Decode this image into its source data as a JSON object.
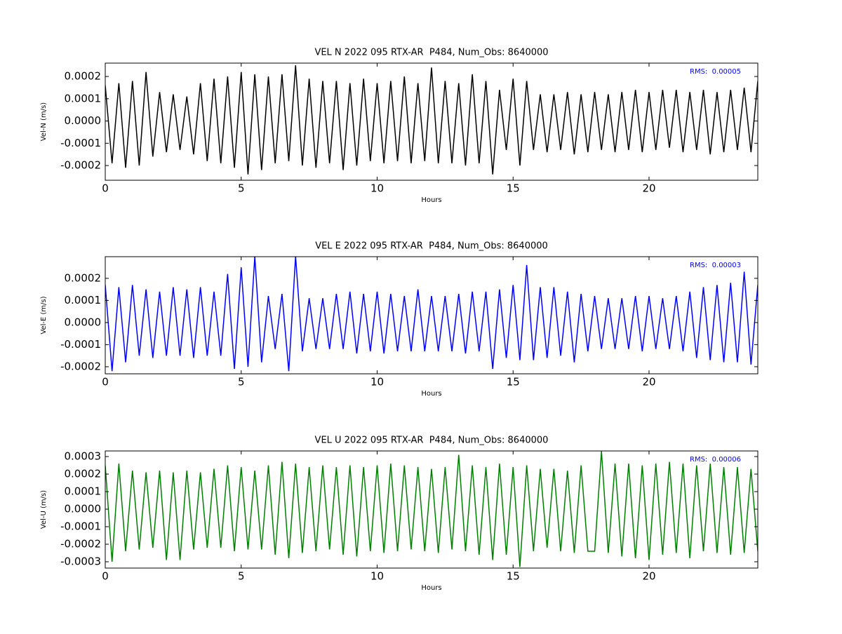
{
  "chart_data": [
    {
      "type": "line",
      "title": "VEL N 2022 095 RTX-AR  P484, Num_Obs: 8640000",
      "xlabel": "Hours",
      "ylabel": "Vel-N (m/s)",
      "annotation": "RMS:  0.00005",
      "annotation_color": "#0000ff",
      "color": "#000000",
      "xlim": [
        0,
        24
      ],
      "xticks": [
        0,
        5,
        10,
        15,
        20
      ],
      "ylim": [
        -0.000266,
        0.00026
      ],
      "yticks": [
        -0.0002,
        -0.0001,
        {
          "value": 0,
          "label": "0.0000"
        },
        0.0001,
        0.0002
      ],
      "x": [
        0,
        0.25,
        0.5,
        0.75,
        1,
        1.25,
        1.5,
        1.75,
        2,
        2.25,
        2.5,
        2.75,
        3,
        3.25,
        3.5,
        3.75,
        4,
        4.25,
        4.5,
        4.75,
        5,
        5.25,
        5.5,
        5.75,
        6,
        6.25,
        6.5,
        6.75,
        7,
        7.25,
        7.5,
        7.75,
        8,
        8.25,
        8.5,
        8.75,
        9,
        9.25,
        9.5,
        9.75,
        10,
        10.25,
        10.5,
        10.75,
        11,
        11.25,
        11.5,
        11.75,
        12,
        12.25,
        12.5,
        12.75,
        13,
        13.25,
        13.5,
        13.75,
        14,
        14.25,
        14.5,
        14.75,
        15,
        15.25,
        15.5,
        15.75,
        16,
        16.25,
        16.5,
        16.75,
        17,
        17.25,
        17.5,
        17.75,
        18,
        18.25,
        18.5,
        18.75,
        19,
        19.25,
        19.5,
        19.75,
        20,
        20.25,
        20.5,
        20.75,
        21,
        21.25,
        21.5,
        21.75,
        22,
        22.25,
        22.5,
        22.75,
        23,
        23.25,
        23.5,
        23.75,
        24
      ],
      "values": [
        0.00016,
        -0.00019,
        0.00017,
        -0.00021,
        0.00018,
        -0.0002,
        0.00022,
        -0.00016,
        0.00013,
        -0.00014,
        0.00012,
        -0.00013,
        0.00011,
        -0.00015,
        0.00017,
        -0.00018,
        0.00019,
        -0.00019,
        0.0002,
        -0.00021,
        0.00022,
        -0.00024,
        0.00021,
        -0.00022,
        0.0002,
        -0.00019,
        0.00021,
        -0.00018,
        0.00025,
        -0.0002,
        0.00019,
        -0.00021,
        0.00018,
        -0.00019,
        0.00018,
        -0.00022,
        0.00017,
        -0.0002,
        0.00019,
        -0.00018,
        0.00017,
        -0.00019,
        0.00018,
        -0.00018,
        0.0002,
        -0.00019,
        0.00017,
        -0.00018,
        0.00024,
        -0.00019,
        0.00018,
        -0.00019,
        0.00017,
        -0.0002,
        0.00021,
        -0.00019,
        0.00018,
        -0.00024,
        0.00014,
        -0.00013,
        0.00019,
        -0.0002,
        0.00018,
        -0.00013,
        0.00012,
        -0.00014,
        0.00012,
        -0.00013,
        0.00013,
        -0.00015,
        0.00012,
        -0.00014,
        0.00013,
        -0.00013,
        0.00012,
        -0.00014,
        0.00013,
        -0.00013,
        0.00014,
        -0.00014,
        0.00013,
        -0.00013,
        0.00014,
        -0.00012,
        0.00014,
        -0.00014,
        0.00013,
        -0.00013,
        0.00014,
        -0.00015,
        0.00013,
        -0.00014,
        0.00014,
        -0.00013,
        0.00015,
        -0.00014,
        0.00018
      ]
    },
    {
      "type": "line",
      "title": "VEL E 2022 095 RTX-AR  P484, Num_Obs: 8640000",
      "xlabel": "Hours",
      "ylabel": "Vel-E (m/s)",
      "annotation": "RMS:  0.00003",
      "annotation_color": "#0000ff",
      "color": "#0000ff",
      "xlim": [
        0,
        24
      ],
      "xticks": [
        0,
        5,
        10,
        15,
        20
      ],
      "ylim": [
        -0.000232,
        0.000298
      ],
      "yticks": [
        -0.0002,
        -0.0001,
        {
          "value": 0,
          "label": "0.0000"
        },
        0.0001,
        0.0002
      ],
      "x": [
        0,
        0.25,
        0.5,
        0.75,
        1,
        1.25,
        1.5,
        1.75,
        2,
        2.25,
        2.5,
        2.75,
        3,
        3.25,
        3.5,
        3.75,
        4,
        4.25,
        4.5,
        4.75,
        5,
        5.25,
        5.5,
        5.75,
        6,
        6.25,
        6.5,
        6.75,
        7,
        7.25,
        7.5,
        7.75,
        8,
        8.25,
        8.5,
        8.75,
        9,
        9.25,
        9.5,
        9.75,
        10,
        10.25,
        10.5,
        10.75,
        11,
        11.25,
        11.5,
        11.75,
        12,
        12.25,
        12.5,
        12.75,
        13,
        13.25,
        13.5,
        13.75,
        14,
        14.25,
        14.5,
        14.75,
        15,
        15.25,
        15.5,
        15.75,
        16,
        16.25,
        16.5,
        16.75,
        17,
        17.25,
        17.5,
        17.75,
        18,
        18.25,
        18.5,
        18.75,
        19,
        19.25,
        19.5,
        19.75,
        20,
        20.25,
        20.5,
        20.75,
        21,
        21.25,
        21.5,
        21.75,
        22,
        22.25,
        22.5,
        22.75,
        23,
        23.25,
        23.5,
        23.75,
        24
      ],
      "values": [
        0.00017,
        -0.00022,
        0.00016,
        -0.00018,
        0.00017,
        -0.00015,
        0.00015,
        -0.00016,
        0.00014,
        -0.00015,
        0.00016,
        -0.00015,
        0.00015,
        -0.00016,
        0.00016,
        -0.00015,
        0.00014,
        -0.00015,
        0.00022,
        -0.00021,
        0.00025,
        -0.0002,
        0.0003,
        -0.00018,
        0.00012,
        -0.00012,
        0.00013,
        -0.00022,
        0.0003,
        -0.00013,
        0.00011,
        -0.00012,
        0.00011,
        -0.00012,
        0.00013,
        -0.00012,
        0.00014,
        -0.00014,
        0.00013,
        -0.00013,
        0.00014,
        -0.00014,
        0.00013,
        -0.00013,
        0.00012,
        -0.00013,
        0.00015,
        -0.00013,
        0.00012,
        -0.00013,
        0.00012,
        -0.00013,
        0.00013,
        -0.00014,
        0.00014,
        -0.00013,
        0.00014,
        -0.00021,
        0.00015,
        -0.00016,
        0.00017,
        -0.00017,
        0.00026,
        -0.00017,
        0.00016,
        -0.00016,
        0.00016,
        -0.00015,
        0.00014,
        -0.00018,
        0.00013,
        -0.00013,
        0.00012,
        -0.00012,
        0.00011,
        -0.00012,
        0.00011,
        -0.00012,
        0.00012,
        -0.00013,
        0.00012,
        -0.00012,
        0.00011,
        -0.00012,
        0.00012,
        -0.00013,
        0.00014,
        -0.00016,
        0.00016,
        -0.00017,
        0.00017,
        -0.00018,
        0.00018,
        -0.00018,
        0.00023,
        -0.00019,
        0.00017
      ]
    },
    {
      "type": "line",
      "title": "VEL U 2022 095 RTX-AR  P484, Num_Obs: 8640000",
      "xlabel": "Hours",
      "ylabel": "Vel-U (m/s)",
      "annotation": "RMS:  0.00006",
      "annotation_color": "#0000ff",
      "color": "#008000",
      "xlim": [
        0,
        24
      ],
      "xticks": [
        0,
        5,
        10,
        15,
        20
      ],
      "ylim": [
        -0.000336,
        0.000332
      ],
      "yticks": [
        -0.0003,
        -0.0002,
        -0.0001,
        {
          "value": 0,
          "label": "0.0000"
        },
        0.0001,
        0.0002,
        0.0003
      ],
      "x": [
        0,
        0.25,
        0.5,
        0.75,
        1,
        1.25,
        1.5,
        1.75,
        2,
        2.25,
        2.5,
        2.75,
        3,
        3.25,
        3.5,
        3.75,
        4,
        4.25,
        4.5,
        4.75,
        5,
        5.25,
        5.5,
        5.75,
        6,
        6.25,
        6.5,
        6.75,
        7,
        7.25,
        7.5,
        7.75,
        8,
        8.25,
        8.5,
        8.75,
        9,
        9.25,
        9.5,
        9.75,
        10,
        10.25,
        10.5,
        10.75,
        11,
        11.25,
        11.5,
        11.75,
        12,
        12.25,
        12.5,
        12.75,
        13,
        13.25,
        13.5,
        13.75,
        14,
        14.25,
        14.5,
        14.75,
        15,
        15.25,
        15.5,
        15.75,
        16,
        16.25,
        16.5,
        16.75,
        17,
        17.25,
        17.5,
        17.75,
        18,
        18.25,
        18.5,
        18.75,
        19,
        19.25,
        19.5,
        19.75,
        20,
        20.25,
        20.5,
        20.75,
        21,
        21.25,
        21.5,
        21.75,
        22,
        22.25,
        22.5,
        22.75,
        23,
        23.25,
        23.5,
        23.75,
        24
      ],
      "values": [
        0.00025,
        -0.0003,
        0.00026,
        -0.00024,
        0.00022,
        -0.00023,
        0.00021,
        -0.00022,
        0.00022,
        -0.00029,
        0.00021,
        -0.00029,
        0.00022,
        -0.00023,
        0.00021,
        -0.00022,
        0.00023,
        -0.00022,
        0.00025,
        -0.00024,
        0.00024,
        -0.00023,
        0.00022,
        -0.00023,
        0.00025,
        -0.00026,
        0.00027,
        -0.00028,
        0.00026,
        -0.00025,
        0.00024,
        -0.00024,
        0.00025,
        -0.00023,
        0.00024,
        -0.00026,
        0.00025,
        -0.00027,
        0.00024,
        -0.00024,
        0.00025,
        -0.00025,
        0.00026,
        -0.00024,
        0.00025,
        -0.00023,
        0.00024,
        -0.00024,
        0.00023,
        -0.00025,
        0.00024,
        -0.00023,
        0.00031,
        -0.00024,
        0.00025,
        -0.00026,
        0.00024,
        -0.00029,
        0.00026,
        -0.00026,
        0.00024,
        -0.00033,
        0.00025,
        -0.00024,
        0.00023,
        -0.00022,
        0.00023,
        -0.00024,
        0.00022,
        -0.00025,
        0.00025,
        -0.00024,
        -0.00024,
        0.00033,
        -0.00025,
        0.00026,
        -0.00027,
        0.00026,
        -0.00028,
        0.00025,
        -0.00029,
        0.00026,
        -0.00026,
        0.00027,
        -0.00025,
        0.00026,
        -0.00028,
        0.00025,
        -0.00024,
        0.00026,
        -0.00025,
        0.00024,
        -0.00026,
        0.00024,
        -0.00025,
        0.00023,
        -0.00024
      ]
    }
  ]
}
